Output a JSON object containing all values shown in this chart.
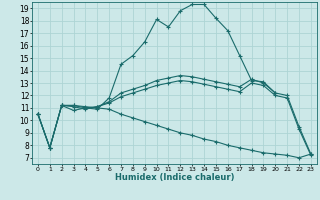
{
  "xlabel": "Humidex (Indice chaleur)",
  "bg_color": "#cce8e8",
  "grid_color": "#aed4d4",
  "line_color": "#1a6b6b",
  "xlim": [
    -0.5,
    23.5
  ],
  "ylim": [
    6.5,
    19.5
  ],
  "xticks": [
    0,
    1,
    2,
    3,
    4,
    5,
    6,
    7,
    8,
    9,
    10,
    11,
    12,
    13,
    14,
    15,
    16,
    17,
    18,
    19,
    20,
    21,
    22,
    23
  ],
  "yticks": [
    7,
    8,
    9,
    10,
    11,
    12,
    13,
    14,
    15,
    16,
    17,
    18,
    19
  ],
  "series": [
    {
      "x": [
        0,
        1,
        2,
        3,
        4,
        5,
        6,
        7,
        8,
        9,
        10,
        11,
        12,
        13,
        14,
        15,
        16,
        17,
        18,
        19,
        20,
        21,
        22,
        23
      ],
      "y": [
        10.5,
        7.8,
        11.2,
        11.2,
        11.0,
        11.1,
        11.5,
        12.2,
        12.5,
        12.8,
        13.2,
        13.4,
        13.6,
        13.5,
        13.3,
        13.1,
        12.9,
        12.7,
        13.3,
        13.0,
        12.2,
        12.0,
        9.5,
        7.3
      ]
    },
    {
      "x": [
        0,
        1,
        2,
        3,
        4,
        5,
        6,
        7,
        8,
        9,
        10,
        11,
        12,
        13,
        14,
        15,
        16,
        17,
        18,
        19,
        20
      ],
      "y": [
        10.5,
        7.8,
        11.2,
        10.8,
        11.0,
        10.9,
        11.8,
        14.5,
        15.2,
        16.3,
        18.1,
        17.5,
        18.8,
        19.3,
        19.3,
        18.2,
        17.2,
        15.2,
        13.2,
        13.1,
        12.2
      ]
    },
    {
      "x": [
        0,
        1,
        2,
        3,
        4,
        5,
        6,
        7,
        8,
        9,
        10,
        11,
        12,
        13,
        14,
        15,
        16,
        17,
        18,
        19,
        20,
        21,
        22,
        23
      ],
      "y": [
        10.5,
        7.8,
        11.2,
        11.1,
        10.9,
        11.1,
        11.4,
        11.9,
        12.2,
        12.5,
        12.8,
        13.0,
        13.2,
        13.1,
        12.9,
        12.7,
        12.5,
        12.3,
        13.0,
        12.8,
        12.0,
        11.8,
        9.3,
        7.2
      ]
    },
    {
      "x": [
        0,
        1,
        2,
        3,
        4,
        5,
        6,
        7,
        8,
        9,
        10,
        11,
        12,
        13,
        14,
        15,
        16,
        17,
        18,
        19,
        20,
        21,
        22,
        23
      ],
      "y": [
        10.5,
        7.8,
        11.2,
        11.2,
        11.1,
        11.0,
        10.9,
        10.5,
        10.2,
        9.9,
        9.6,
        9.3,
        9.0,
        8.8,
        8.5,
        8.3,
        8.0,
        7.8,
        7.6,
        7.4,
        7.3,
        7.2,
        7.0,
        7.3
      ]
    }
  ]
}
